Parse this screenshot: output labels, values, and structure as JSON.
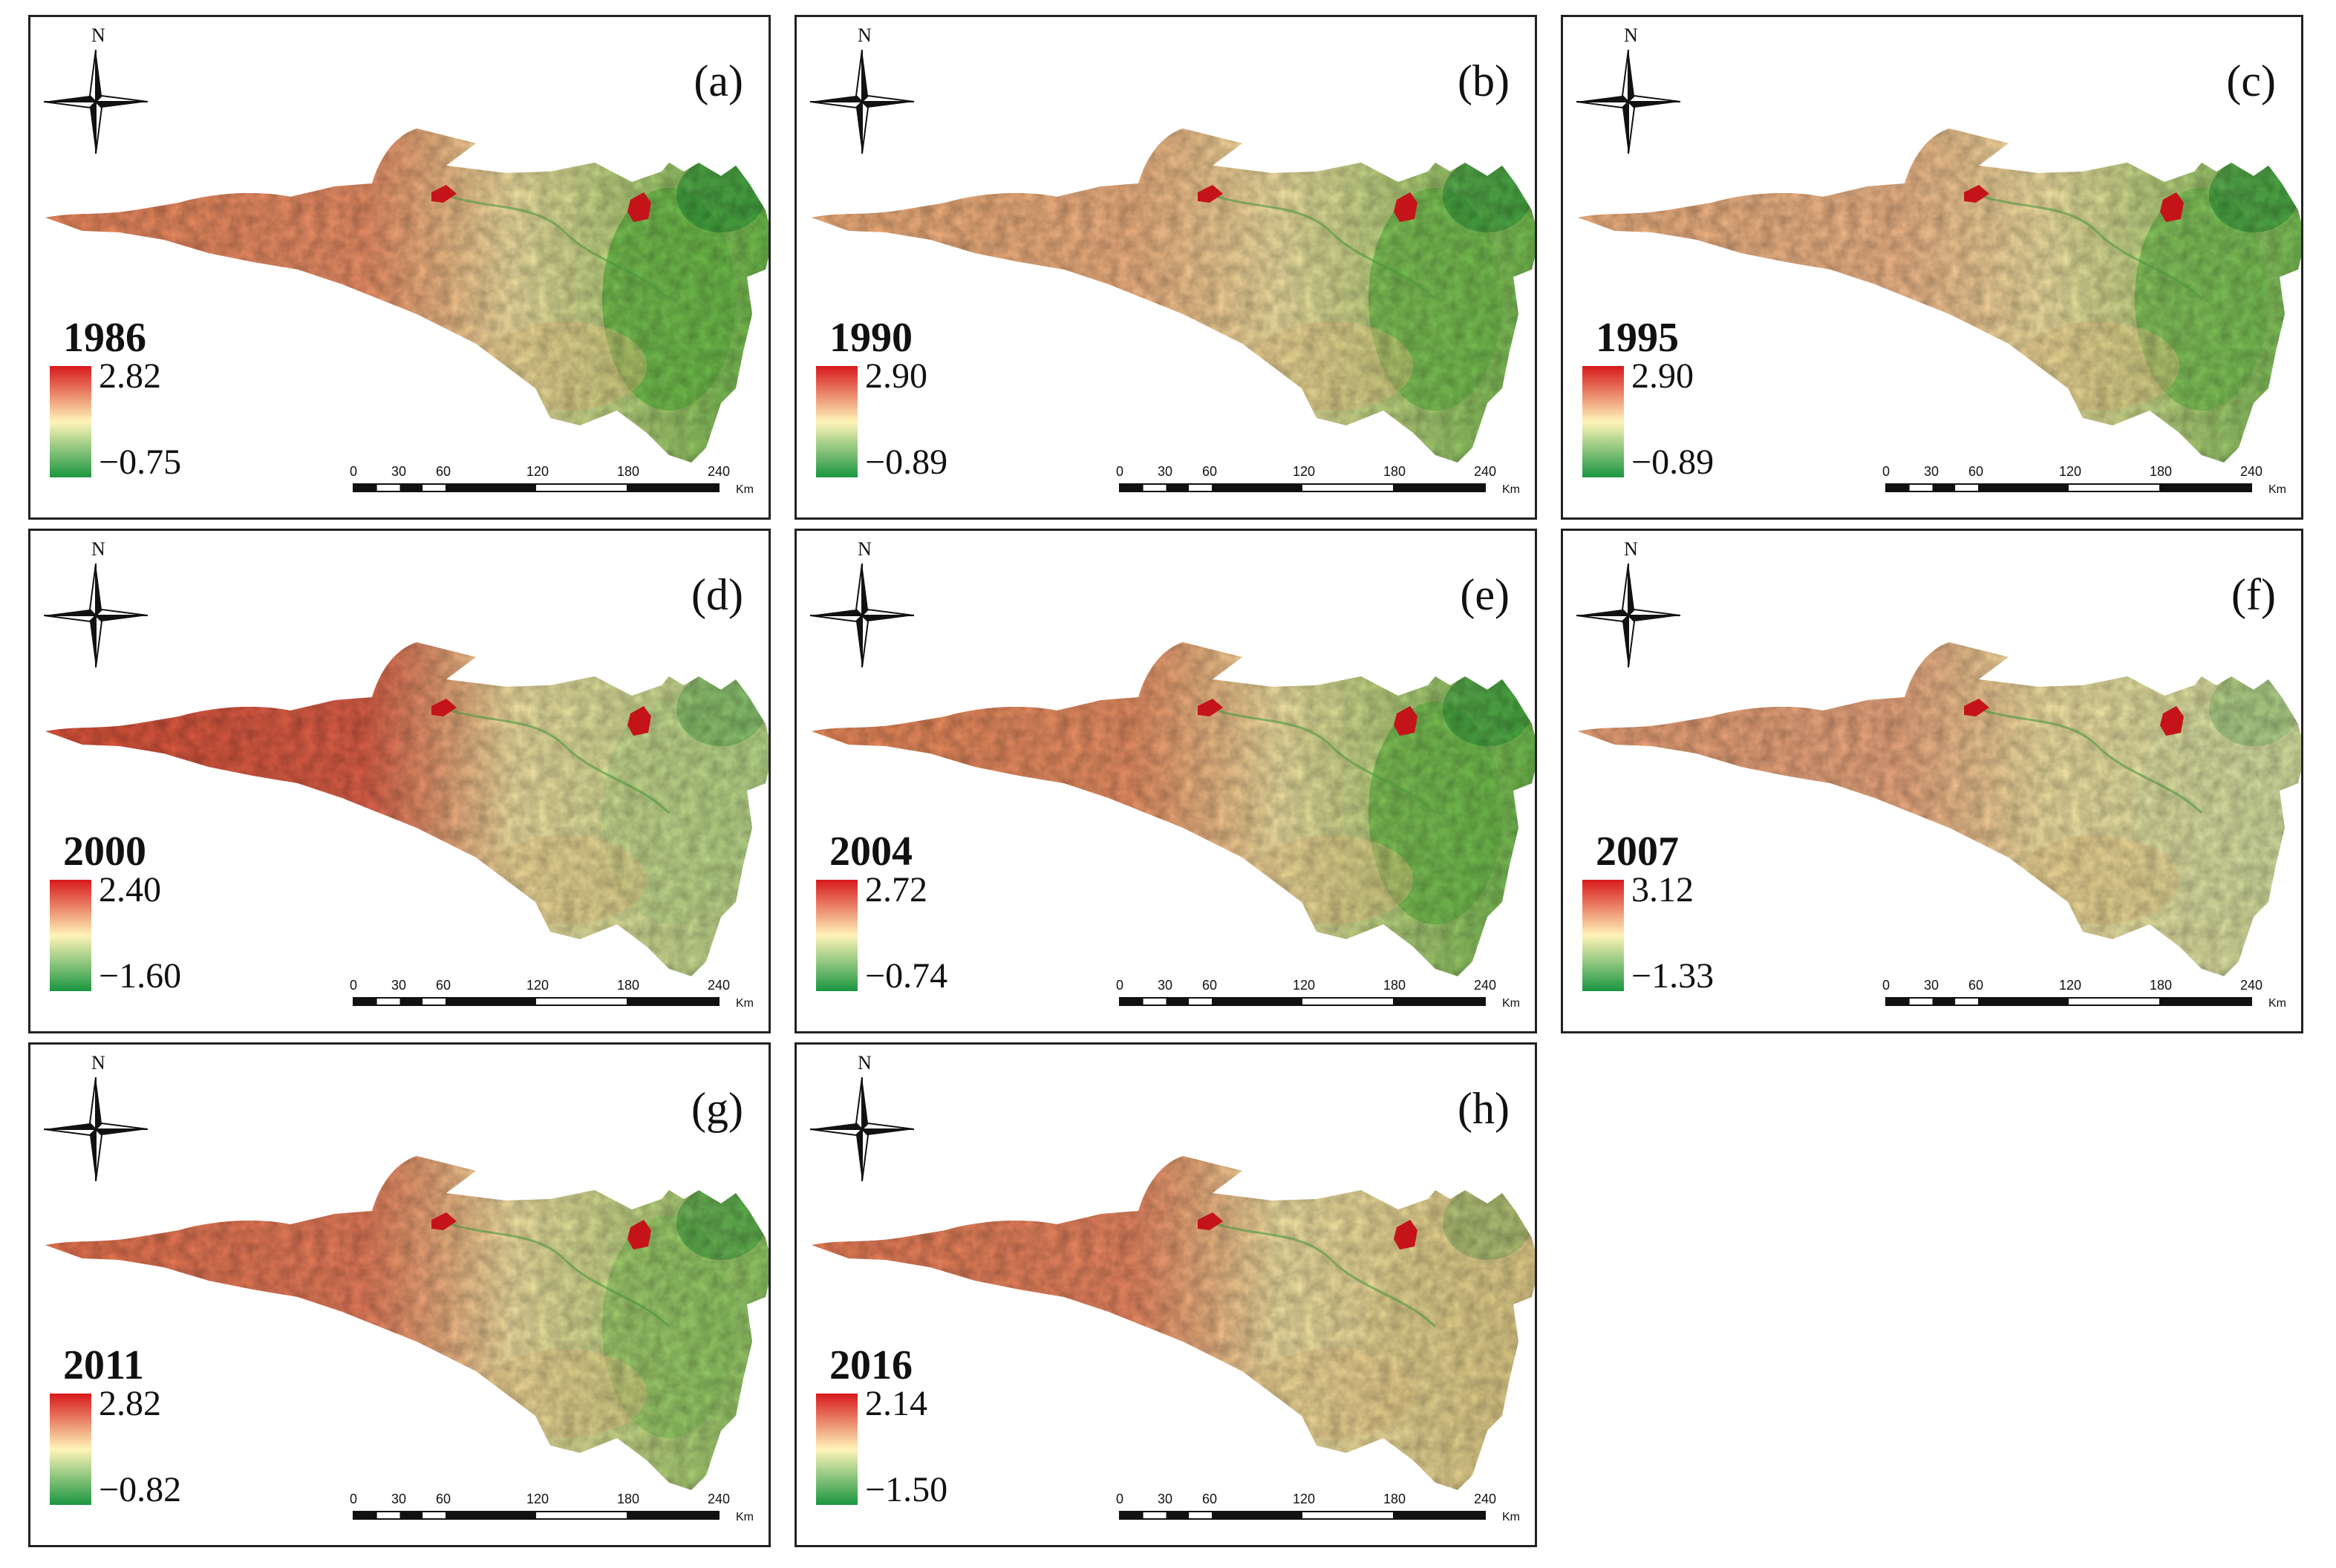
{
  "compass_label": "N",
  "units": "Km",
  "scale_ticks": [
    "0",
    "30",
    "60",
    "120",
    "180",
    "240"
  ],
  "colors": {
    "ramp_high": "#d7191c",
    "ramp_mid": "#fff4b8",
    "ramp_low": "#1a9641",
    "city": "#c4141a"
  },
  "panels": [
    {
      "label": "(a)",
      "year": "1986",
      "max": "2.82",
      "min": "−0.75"
    },
    {
      "label": "(b)",
      "year": "1990",
      "max": "2.90",
      "min": "−0.89"
    },
    {
      "label": "(c)",
      "year": "1995",
      "max": "2.90",
      "min": "−0.89"
    },
    {
      "label": "(d)",
      "year": "2000",
      "max": "2.40",
      "min": "−1.60"
    },
    {
      "label": "(e)",
      "year": "2004",
      "max": "2.72",
      "min": "−0.74"
    },
    {
      "label": "(f)",
      "year": "2007",
      "max": "3.12",
      "min": "−1.33"
    },
    {
      "label": "(g)",
      "year": "2011",
      "max": "2.82",
      "min": "−0.82"
    },
    {
      "label": "(h)",
      "year": "2016",
      "max": "2.14",
      "min": "−1.50"
    }
  ]
}
